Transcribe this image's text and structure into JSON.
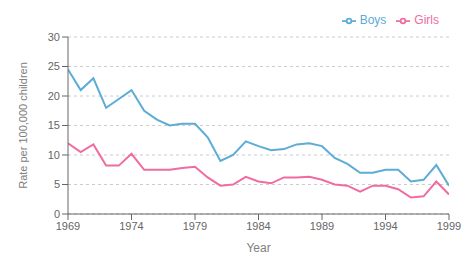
{
  "chart_data": {
    "type": "line",
    "x": [
      1969,
      1970,
      1971,
      1972,
      1973,
      1974,
      1975,
      1976,
      1977,
      1978,
      1979,
      1980,
      1981,
      1982,
      1983,
      1984,
      1985,
      1986,
      1987,
      1988,
      1989,
      1990,
      1991,
      1992,
      1993,
      1994,
      1995,
      1996,
      1997,
      1998,
      1999
    ],
    "series": [
      {
        "name": "Boys",
        "color": "#5bacd6",
        "values": [
          24.5,
          21.0,
          23.0,
          18.0,
          19.5,
          21.0,
          17.5,
          16.0,
          15.0,
          15.3,
          15.3,
          13.0,
          9.0,
          10.0,
          12.3,
          11.5,
          10.8,
          11.0,
          11.8,
          12.0,
          11.5,
          9.5,
          8.5,
          7.0,
          7.0,
          7.5,
          7.5,
          5.5,
          5.8,
          8.3,
          4.8
        ]
      },
      {
        "name": "Girls",
        "color": "#f06ca0",
        "values": [
          12.0,
          10.5,
          11.8,
          8.2,
          8.2,
          10.2,
          7.5,
          7.5,
          7.5,
          7.8,
          8.0,
          6.2,
          4.8,
          5.0,
          6.3,
          5.5,
          5.2,
          6.2,
          6.2,
          6.3,
          5.8,
          5.0,
          4.8,
          3.8,
          4.8,
          4.8,
          4.2,
          2.8,
          3.0,
          5.5,
          3.3
        ]
      }
    ],
    "xlabel": "Year",
    "ylabel": "Rate per 100,000 children",
    "xlim": [
      1969,
      1999
    ],
    "ylim": [
      0,
      30
    ],
    "xticks": [
      1969,
      1974,
      1979,
      1984,
      1989,
      1994,
      1999
    ],
    "yticks": [
      0,
      5,
      10,
      15,
      20,
      25,
      30
    ],
    "grid": "y",
    "legend": "upper right"
  }
}
